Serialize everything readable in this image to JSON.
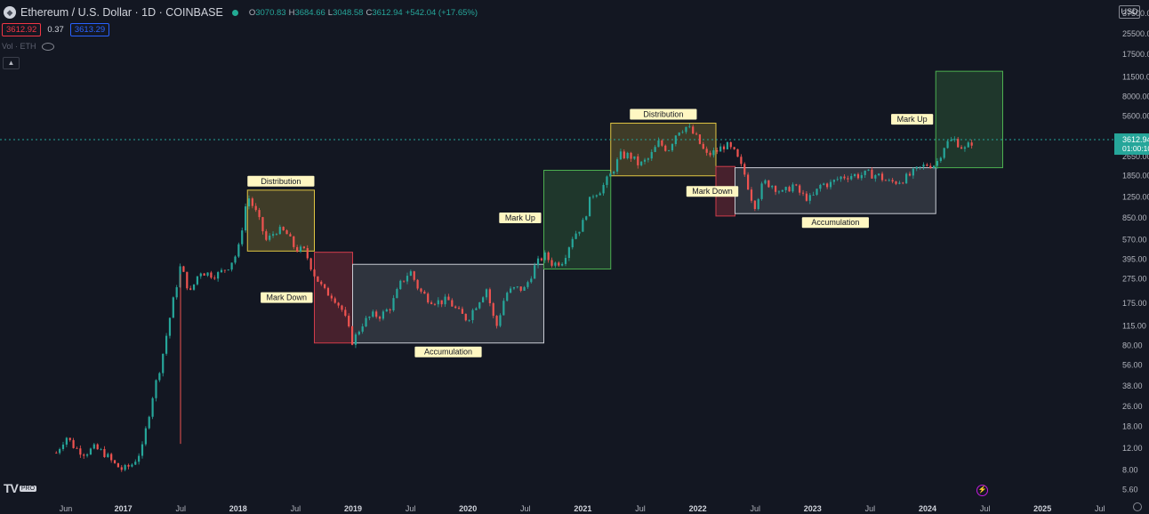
{
  "header": {
    "symbol_title": "Ethereum / U.S. Dollar · 1D · COINBASE",
    "logo_icon": "ethereum-logo-icon",
    "status_color": "#22ab94",
    "ohlc": {
      "o_label": "O",
      "o_value": "3070.83",
      "h_label": "H",
      "h_value": "3684.66",
      "l_label": "L",
      "l_value": "3048.58",
      "c_label": "C",
      "c_value": "3612.94",
      "change": "+542.04 (+17.65%)"
    }
  },
  "trade": {
    "sell_price": "3612.92",
    "spread": "0.37",
    "buy_price": "3613.29"
  },
  "volume": {
    "label": "Vol · ETH",
    "icon": "eye-hidden-icon"
  },
  "collapse_icon": "chevron-up-icon",
  "currency_label": "USD",
  "branding": {
    "logo": "TV",
    "badge": "PRO"
  },
  "icons": {
    "settings": "gear-icon",
    "alert": "lightning-icon"
  },
  "colors": {
    "background": "#131722",
    "up": "#26a69a",
    "down": "#ef5350",
    "distribution": "#e0c542",
    "markdown": "#d13c4b",
    "accumulation": "#c8cbd3",
    "markup": "#4caf50"
  },
  "chart_data": {
    "type": "candlestick",
    "y_scale": "log",
    "ylim": [
      5.1,
      38000
    ],
    "y_ticks": [
      "37500.00",
      "25500.00",
      "17500.00",
      "11500.00",
      "8000.00",
      "5600.00",
      "3850.00",
      "2650.00",
      "1850.00",
      "1250.00",
      "850.00",
      "570.00",
      "395.00",
      "275.00",
      "175.00",
      "115.00",
      "80.00",
      "56.00",
      "38.00",
      "26.00",
      "18.00",
      "12.00",
      "8.00",
      "5.60"
    ],
    "x_ticks": [
      "Jun",
      "2017",
      "Jul",
      "2018",
      "Jul",
      "2019",
      "Jul",
      "2020",
      "Jul",
      "2021",
      "Jul",
      "2022",
      "Jul",
      "2023",
      "Jul",
      "2024",
      "Jul",
      "2025",
      "Jul"
    ],
    "x_range": [
      "2016-05",
      "2025-08"
    ],
    "last_price": "3612.94",
    "countdown": "01:00:10",
    "price_path": [
      [
        "2016-05",
        11
      ],
      [
        "2016-06",
        15
      ],
      [
        "2016-07",
        12
      ],
      [
        "2016-08",
        11
      ],
      [
        "2016-09",
        12
      ],
      [
        "2016-10",
        11
      ],
      [
        "2016-11",
        9
      ],
      [
        "2016-12",
        8
      ],
      [
        "2017-01",
        9
      ],
      [
        "2017-02",
        12
      ],
      [
        "2017-03",
        30
      ],
      [
        "2017-04",
        60
      ],
      [
        "2017-05",
        150
      ],
      [
        "2017-06",
        350
      ],
      [
        "2017-07",
        210
      ],
      [
        "2017-08",
        320
      ],
      [
        "2017-09",
        300
      ],
      [
        "2017-10",
        300
      ],
      [
        "2017-11",
        350
      ],
      [
        "2017-12",
        450
      ],
      [
        "2018-01",
        1300
      ],
      [
        "2018-02",
        900
      ],
      [
        "2018-03",
        550
      ],
      [
        "2018-04",
        680
      ],
      [
        "2018-05",
        650
      ],
      [
        "2018-06",
        480
      ],
      [
        "2018-07",
        460
      ],
      [
        "2018-08",
        300
      ],
      [
        "2018-09",
        220
      ],
      [
        "2018-10",
        200
      ],
      [
        "2018-11",
        150
      ],
      [
        "2018-12",
        85
      ],
      [
        "2019-01",
        120
      ],
      [
        "2019-02",
        140
      ],
      [
        "2019-03",
        140
      ],
      [
        "2019-04",
        165
      ],
      [
        "2019-05",
        250
      ],
      [
        "2019-06",
        320
      ],
      [
        "2019-07",
        220
      ],
      [
        "2019-08",
        190
      ],
      [
        "2019-09",
        180
      ],
      [
        "2019-10",
        185
      ],
      [
        "2019-11",
        150
      ],
      [
        "2019-12",
        130
      ],
      [
        "2020-01",
        175
      ],
      [
        "2020-02",
        230
      ],
      [
        "2020-03",
        110
      ],
      [
        "2020-04",
        210
      ],
      [
        "2020-05",
        230
      ],
      [
        "2020-06",
        228
      ],
      [
        "2020-07",
        340
      ],
      [
        "2020-08",
        430
      ],
      [
        "2020-09",
        360
      ],
      [
        "2020-10",
        390
      ],
      [
        "2020-11",
        600
      ],
      [
        "2020-12",
        740
      ],
      [
        "2021-01",
        1300
      ],
      [
        "2021-02",
        1450
      ],
      [
        "2021-03",
        1900
      ],
      [
        "2021-04",
        2700
      ],
      [
        "2021-05",
        2700
      ],
      [
        "2021-06",
        2250
      ],
      [
        "2021-07",
        2550
      ],
      [
        "2021-08",
        3400
      ],
      [
        "2021-09",
        3000
      ],
      [
        "2021-10",
        4300
      ],
      [
        "2021-11",
        4600
      ],
      [
        "2021-12",
        3700
      ],
      [
        "2022-01",
        2700
      ],
      [
        "2022-02",
        2900
      ],
      [
        "2022-03",
        3300
      ],
      [
        "2022-04",
        2800
      ],
      [
        "2022-05",
        1900
      ],
      [
        "2022-06",
        1050
      ],
      [
        "2022-07",
        1650
      ],
      [
        "2022-08",
        1550
      ],
      [
        "2022-09",
        1330
      ],
      [
        "2022-10",
        1570
      ],
      [
        "2022-11",
        1290
      ],
      [
        "2022-12",
        1200
      ],
      [
        "2023-01",
        1580
      ],
      [
        "2023-02",
        1600
      ],
      [
        "2023-03",
        1800
      ],
      [
        "2023-04",
        1870
      ],
      [
        "2023-05",
        1870
      ],
      [
        "2023-06",
        1930
      ],
      [
        "2023-07",
        1860
      ],
      [
        "2023-08",
        1640
      ],
      [
        "2023-09",
        1670
      ],
      [
        "2023-10",
        1800
      ],
      [
        "2023-11",
        2050
      ],
      [
        "2023-12",
        2280
      ],
      [
        "2024-01",
        2280
      ],
      [
        "2024-02",
        3380
      ],
      [
        "2024-03",
        3600
      ],
      [
        "2024-04",
        3000
      ],
      [
        "2024-05",
        3612.94
      ]
    ],
    "spike_low": {
      "date": "2017-06",
      "value": 13
    },
    "zones": [
      {
        "label": "Distribution",
        "kind": "distribution",
        "x_start": "2018-01",
        "x_end": "2018-08",
        "y_low": 460,
        "y_high": 1420
      },
      {
        "label": "Mark Down",
        "kind": "markdown",
        "x_start": "2018-08",
        "x_end": "2018-12",
        "y_low": 84,
        "y_high": 450
      },
      {
        "label": "Accumulation",
        "kind": "accumulation",
        "x_start": "2018-12",
        "x_end": "2020-08",
        "y_low": 84,
        "y_high": 360
      },
      {
        "label": "Mark Up",
        "kind": "markup",
        "x_start": "2020-08",
        "x_end": "2021-03",
        "y_low": 330,
        "y_high": 2050
      },
      {
        "label": "Distribution",
        "kind": "distribution",
        "x_start": "2021-03",
        "x_end": "2022-02",
        "y_low": 1850,
        "y_high": 4900
      },
      {
        "label": "Mark Down",
        "kind": "markdown",
        "x_start": "2022-02",
        "x_end": "2022-04",
        "y_low": 880,
        "y_high": 2200
      },
      {
        "label": "Accumulation",
        "kind": "accumulation",
        "x_start": "2022-04",
        "x_end": "2024-01",
        "y_low": 920,
        "y_high": 2150
      },
      {
        "label": "Mark Up",
        "kind": "markup",
        "x_start": "2024-01",
        "x_end": "2024-08",
        "y_low": 2150,
        "y_high": 12800
      }
    ]
  }
}
